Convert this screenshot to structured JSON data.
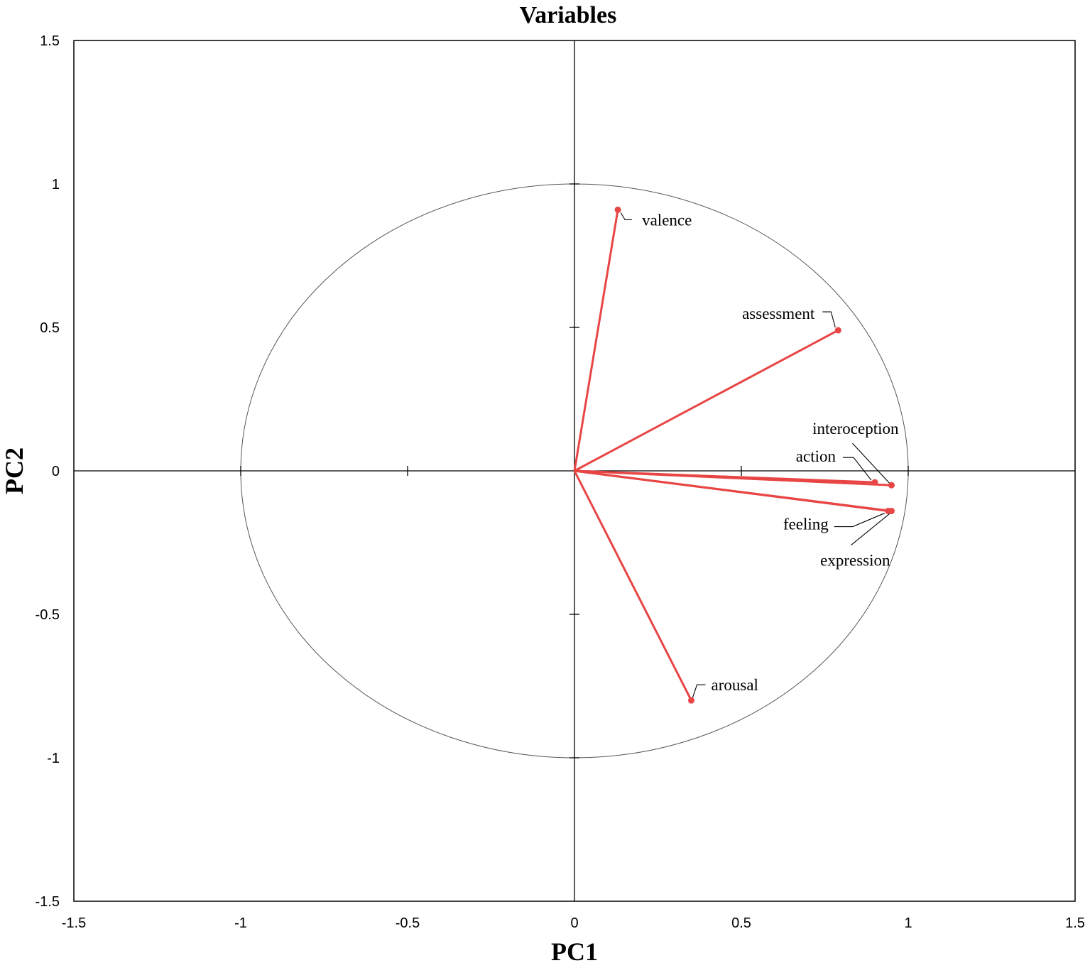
{
  "chart_data": {
    "type": "scatter",
    "subtype": "pca-correlation-circle",
    "title": "Variables",
    "xlabel": "PC1",
    "ylabel": "PC2",
    "xlim": [
      -1.5,
      1.5
    ],
    "ylim": [
      -1.5,
      1.5
    ],
    "xticks": [
      "-1.5",
      "-1",
      "-0.5",
      "0",
      "0.5",
      "1",
      "1.5"
    ],
    "yticks": [
      "-1.5",
      "-1",
      "-0.5",
      "0",
      "0.5",
      "1",
      "1.5"
    ],
    "unit_circle": true,
    "grid": false,
    "vector_color": "#e84545",
    "variables": [
      {
        "name": "valence",
        "x": 0.13,
        "y": 0.91
      },
      {
        "name": "assessment",
        "x": 0.79,
        "y": 0.49
      },
      {
        "name": "interoception",
        "x": 0.95,
        "y": -0.05
      },
      {
        "name": "action",
        "x": 0.9,
        "y": -0.04
      },
      {
        "name": "feeling",
        "x": 0.94,
        "y": -0.14
      },
      {
        "name": "expression",
        "x": 0.95,
        "y": -0.14
      },
      {
        "name": "arousal",
        "x": 0.35,
        "y": -0.8
      }
    ]
  }
}
